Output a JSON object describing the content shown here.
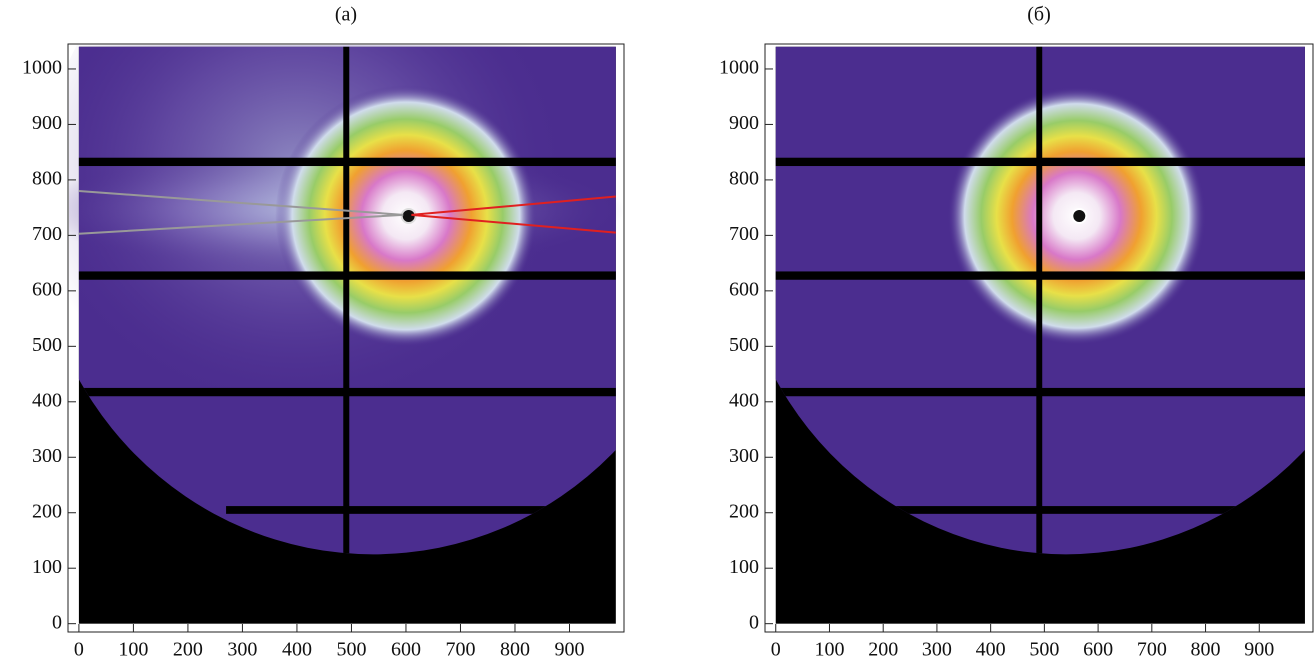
{
  "chart_data": [
    {
      "type": "image",
      "title": "(а)",
      "xlim": [
        -20,
        1000
      ],
      "ylim": [
        -15,
        1045
      ],
      "xticks": [
        0,
        100,
        200,
        300,
        400,
        500,
        600,
        700,
        800,
        900
      ],
      "yticks": [
        0,
        100,
        200,
        300,
        400,
        500,
        600,
        700,
        800,
        900,
        1000
      ]
    },
    {
      "type": "image",
      "title": "(б)",
      "xlim": [
        -20,
        1000
      ],
      "ylim": [
        -15,
        1045
      ],
      "xticks": [
        0,
        100,
        200,
        300,
        400,
        500,
        600,
        700,
        800,
        900
      ],
      "yticks": [
        0,
        100,
        200,
        300,
        400,
        500,
        600,
        700,
        800,
        900,
        1000
      ]
    }
  ]
}
